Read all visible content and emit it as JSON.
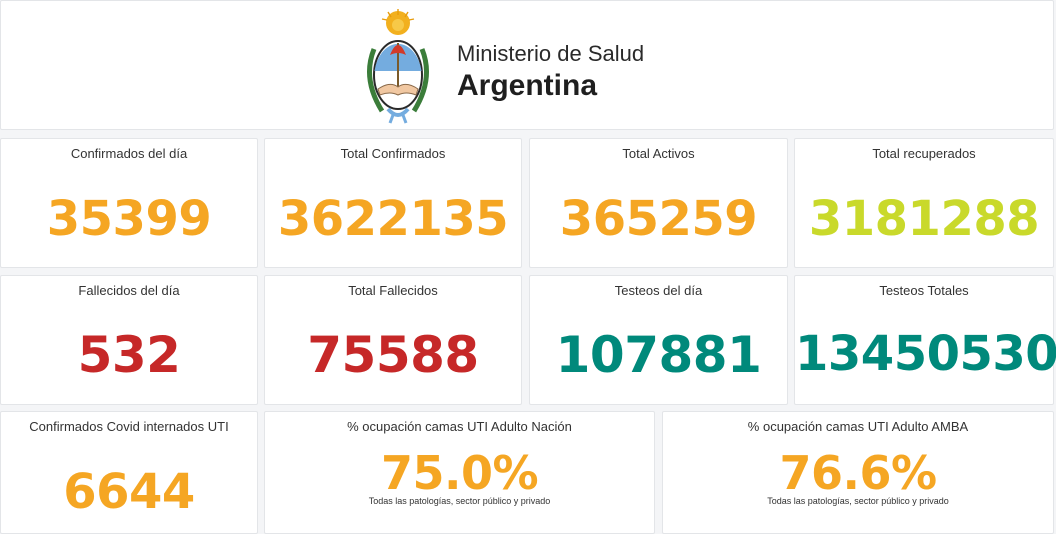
{
  "header": {
    "line1": "Ministerio de Salud",
    "line2": "Argentina"
  },
  "cards": [
    {
      "title": "Confirmados del día",
      "value": "35399",
      "color": "#f5a623"
    },
    {
      "title": "Total Confirmados",
      "value": "3622135",
      "color": "#f5a623"
    },
    {
      "title": "Total Activos",
      "value": "365259",
      "color": "#f5a623"
    },
    {
      "title": "Total recuperados",
      "value": "3181288",
      "color": "#c9d92b"
    },
    {
      "title": "Fallecidos del día",
      "value": "532",
      "color": "#c62828"
    },
    {
      "title": "Total Fallecidos",
      "value": "75588",
      "color": "#c62828"
    },
    {
      "title": "Testeos del día",
      "value": "107881",
      "color": "#00897b"
    },
    {
      "title": "Testeos Totales",
      "value": "13450530",
      "color": "#00897b"
    },
    {
      "title": "Confirmados Covid internados UTI",
      "value": "6644",
      "color": "#f5a623"
    },
    {
      "title": "% ocupación camas UTI Adulto Nación",
      "value": "75.0%",
      "note": "Todas las patologías, sector público y privado",
      "color": "#f5a623"
    },
    {
      "title": "% ocupación camas UTI Adulto AMBA",
      "value": "76.6%",
      "note": "Todas las patologías, sector público y privado",
      "color": "#f5a623"
    }
  ]
}
